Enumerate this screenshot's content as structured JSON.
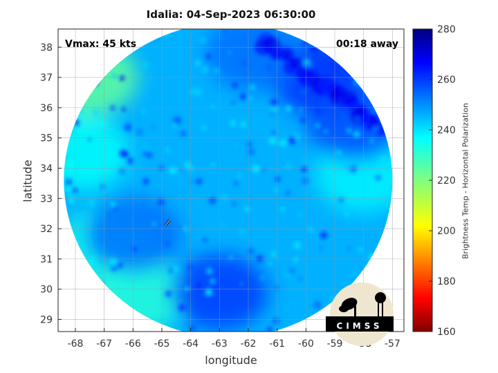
{
  "chart_data": {
    "type": "heatmap",
    "title": "Idalia: 04-Sep-2023 06:30:00",
    "xlabel": "longitude",
    "ylabel": "latitude",
    "xlim": [
      -68.6,
      -56.6
    ],
    "ylim": [
      28.6,
      38.6
    ],
    "x_ticks": [
      -68,
      -67,
      -66,
      -65,
      -64,
      -63,
      -62,
      -61,
      -60,
      -59,
      -58,
      -57
    ],
    "y_ticks": [
      29,
      30,
      31,
      32,
      33,
      34,
      35,
      36,
      37,
      38
    ],
    "grid": true,
    "annotations": {
      "vmax": "Vmax: 45 kts",
      "time_away": "00:18 away"
    },
    "colorbar": {
      "label": "Brightness Temp - Horizontal Polarization",
      "range": [
        160,
        280
      ],
      "ticks": [
        160,
        180,
        200,
        220,
        240,
        260,
        280
      ],
      "colormap": "jet"
    },
    "swath": {
      "center_lon": -62.7,
      "center_lat": 33.6,
      "radius_lon": 5.7,
      "radius_lat": 5.2
    },
    "field": {
      "background_temp": 246,
      "features": [
        {
          "kind": "warm",
          "lon": -67.5,
          "lat": 37.0,
          "temp": 224
        },
        {
          "kind": "warm",
          "lon": -67.8,
          "lat": 34.5,
          "temp": 236
        },
        {
          "kind": "warm",
          "lon": -66.8,
          "lat": 31.5,
          "temp": 234
        },
        {
          "kind": "warm",
          "lon": -65.8,
          "lat": 29.8,
          "temp": 232
        },
        {
          "kind": "warm",
          "lon": -58.0,
          "lat": 33.8,
          "temp": 238
        },
        {
          "kind": "cold",
          "lon": -59.5,
          "lat": 37.0,
          "temp": 262
        },
        {
          "kind": "cold",
          "lon": -58.3,
          "lat": 35.5,
          "temp": 258
        },
        {
          "kind": "cold",
          "lon": -61.8,
          "lat": 37.8,
          "temp": 254
        },
        {
          "kind": "cold",
          "lon": -63.0,
          "lat": 29.9,
          "temp": 260
        },
        {
          "kind": "cold",
          "lon": -66.0,
          "lat": 31.8,
          "temp": 254
        }
      ]
    },
    "storm_center": {
      "lon": -64.8,
      "lat": 32.2
    }
  },
  "logo": {
    "text": "CIMSS"
  }
}
